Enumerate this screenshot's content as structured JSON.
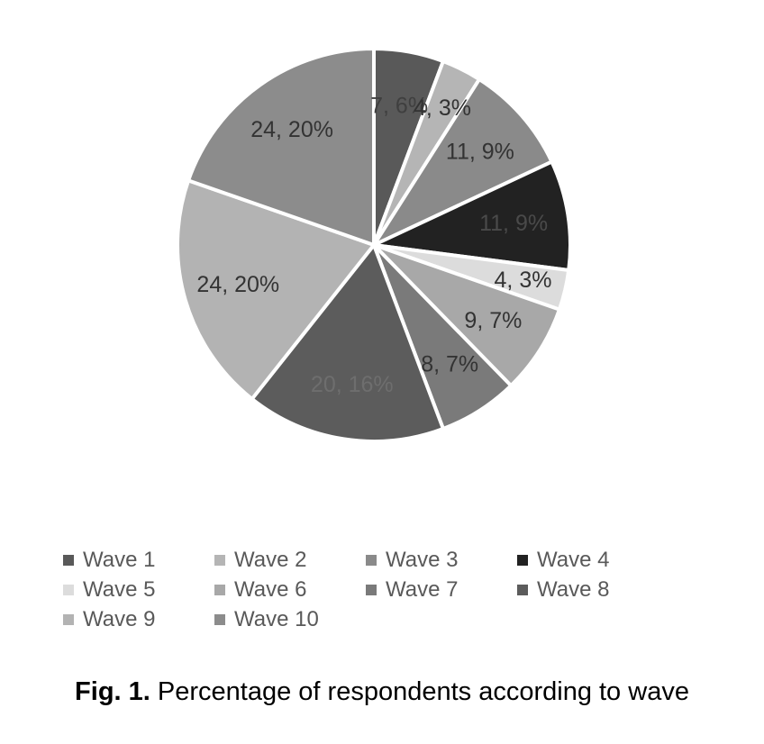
{
  "chart_data": {
    "type": "pie",
    "caption_label": "Fig. 1.",
    "caption_text": "Percentage of respondents according to wave",
    "legend_position": "bottom",
    "slices": [
      {
        "name": "Wave 1",
        "value": 7,
        "label": "7, 6%",
        "color": "#595959",
        "label_color": "#3f3f3f"
      },
      {
        "name": "Wave 2",
        "value": 4,
        "label": "4, 3%",
        "color": "#b5b5b5",
        "label_color": "#333333"
      },
      {
        "name": "Wave 3",
        "value": 11,
        "label": "11, 9%",
        "color": "#8a8a8a",
        "label_color": "#333333"
      },
      {
        "name": "Wave 4",
        "value": 11,
        "label": "11, 9%",
        "color": "#222222",
        "label_color": "#4a4a4a"
      },
      {
        "name": "Wave 5",
        "value": 4,
        "label": "4, 3%",
        "color": "#dcdcdc",
        "label_color": "#333333"
      },
      {
        "name": "Wave 6",
        "value": 9,
        "label": "9, 7%",
        "color": "#a8a8a8",
        "label_color": "#333333"
      },
      {
        "name": "Wave 7",
        "value": 8,
        "label": "8, 7%",
        "color": "#7a7a7a",
        "label_color": "#333333"
      },
      {
        "name": "Wave 8",
        "value": 20,
        "label": "20, 16%",
        "color": "#5c5c5c",
        "label_color": "#6e6e6e"
      },
      {
        "name": "Wave 9",
        "value": 24,
        "label": "24, 20%",
        "color": "#b3b3b3",
        "label_color": "#333333"
      },
      {
        "name": "Wave 10",
        "value": 24,
        "label": "24, 20%",
        "color": "#8c8c8c",
        "label_color": "#333333"
      }
    ]
  }
}
